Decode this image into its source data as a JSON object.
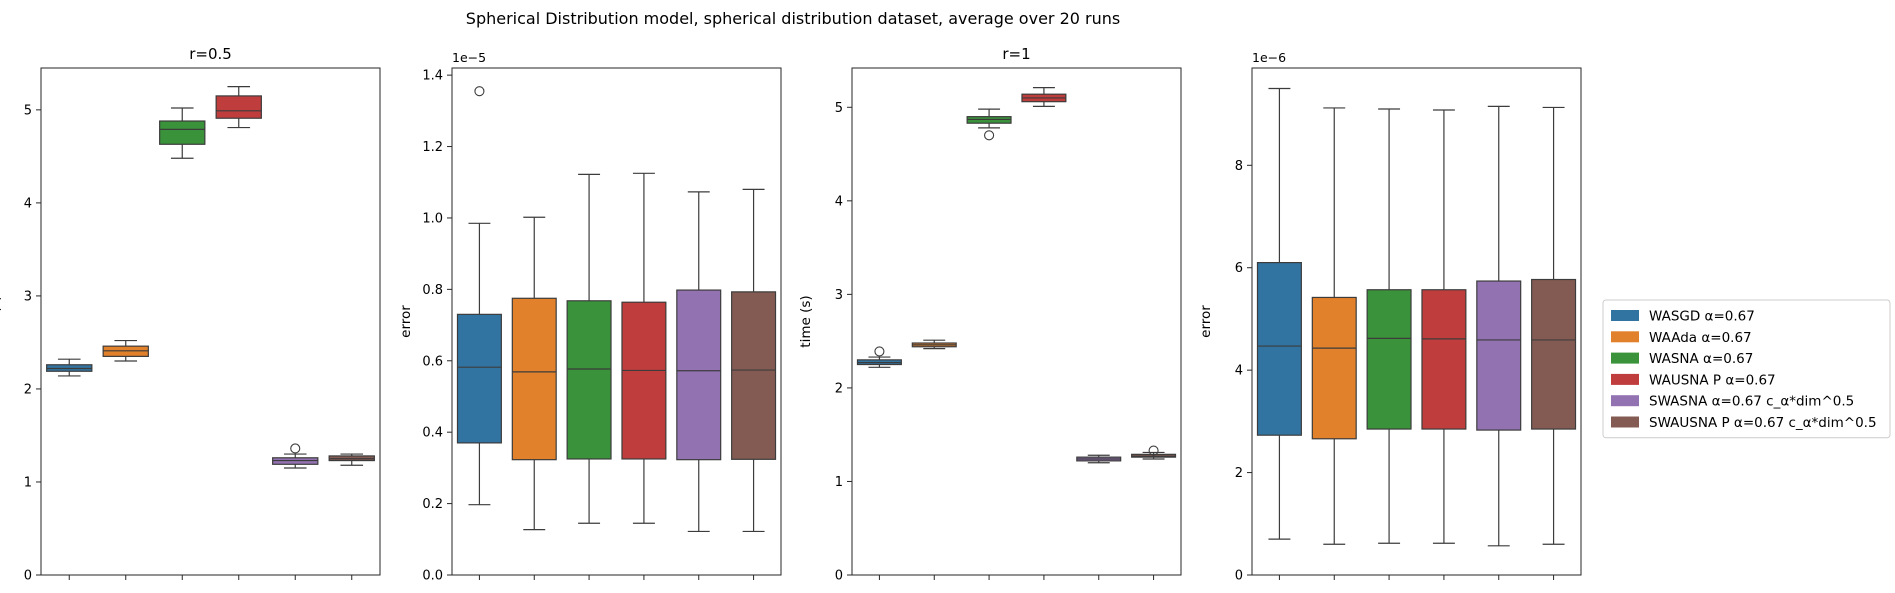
{
  "figure": {
    "suptitle": "Spherical Distribution model, spherical distribution dataset, average over 20 runs"
  },
  "legend": {
    "placement": "right, outside plots",
    "entries": [
      {
        "label": "WASGD α=0.67",
        "color": "#3274a1"
      },
      {
        "label": "WAAda α=0.67",
        "color": "#e1812c"
      },
      {
        "label": "WASNA α=0.67",
        "color": "#3a923a"
      },
      {
        "label": "WAUSNA P α=0.67",
        "color": "#c03d3e"
      },
      {
        "label": "SWASNA α=0.67 c_α*dim^0.5",
        "color": "#9372b2"
      },
      {
        "label": "SWAUSNA P α=0.67 c_α*dim^0.5",
        "color": "#845b53"
      }
    ]
  },
  "chart_data": [
    {
      "type": "box",
      "title": "r=0.5",
      "xlabel": "",
      "ylabel": "time (s)",
      "offset_label": "",
      "ylim": [
        0,
        5.45
      ],
      "yticks": [
        0,
        1,
        2,
        3,
        4,
        5
      ],
      "ytick_labels": [
        "0",
        "1",
        "2",
        "3",
        "4",
        "5"
      ],
      "grid": false,
      "series": [
        {
          "name": "WASGD α=0.67",
          "whislo": 2.14,
          "q1": 2.19,
          "median": 2.22,
          "q3": 2.26,
          "whishi": 2.32,
          "fliers": []
        },
        {
          "name": "WAAda α=0.67",
          "whislo": 2.3,
          "q1": 2.35,
          "median": 2.41,
          "q3": 2.46,
          "whishi": 2.52,
          "fliers": []
        },
        {
          "name": "WASNA α=0.67",
          "whislo": 4.48,
          "q1": 4.63,
          "median": 4.79,
          "q3": 4.88,
          "whishi": 5.02,
          "fliers": []
        },
        {
          "name": "WAUSNA P α=0.67",
          "whislo": 4.81,
          "q1": 4.91,
          "median": 4.99,
          "q3": 5.15,
          "whishi": 5.25,
          "fliers": []
        },
        {
          "name": "SWASNA α=0.67 c_α*dim^0.5",
          "whislo": 1.15,
          "q1": 1.19,
          "median": 1.23,
          "q3": 1.26,
          "whishi": 1.3,
          "fliers": [
            1.36
          ]
        },
        {
          "name": "SWAUSNA P α=0.67 c_α*dim^0.5",
          "whislo": 1.18,
          "q1": 1.23,
          "median": 1.25,
          "q3": 1.28,
          "whishi": 1.3,
          "fliers": []
        }
      ]
    },
    {
      "type": "box",
      "title": "",
      "xlabel": "",
      "ylabel": "error",
      "offset_label": "1e−5",
      "ylim": [
        0,
        1.42
      ],
      "yticks": [
        0,
        0.2,
        0.4,
        0.6,
        0.8,
        1.0,
        1.2,
        1.4
      ],
      "ytick_labels": [
        "0.0",
        "0.2",
        "0.4",
        "0.6",
        "0.8",
        "1.0",
        "1.2",
        "1.4"
      ],
      "grid": false,
      "series": [
        {
          "name": "WASGD α=0.67",
          "whislo": 0.197,
          "q1": 0.37,
          "median": 0.582,
          "q3": 0.73,
          "whishi": 0.985,
          "fliers": [
            1.355
          ]
        },
        {
          "name": "WAAda α=0.67",
          "whislo": 0.127,
          "q1": 0.323,
          "median": 0.569,
          "q3": 0.775,
          "whishi": 1.002,
          "fliers": []
        },
        {
          "name": "WASNA α=0.67",
          "whislo": 0.145,
          "q1": 0.325,
          "median": 0.577,
          "q3": 0.768,
          "whishi": 1.122,
          "fliers": []
        },
        {
          "name": "WAUSNA P α=0.67",
          "whislo": 0.145,
          "q1": 0.325,
          "median": 0.573,
          "q3": 0.764,
          "whishi": 1.125,
          "fliers": []
        },
        {
          "name": "SWASNA α=0.67 c_α*dim^0.5",
          "whislo": 0.122,
          "q1": 0.323,
          "median": 0.572,
          "q3": 0.798,
          "whishi": 1.073,
          "fliers": []
        },
        {
          "name": "SWAUSNA P α=0.67 c_α*dim^0.5",
          "whislo": 0.122,
          "q1": 0.324,
          "median": 0.574,
          "q3": 0.793,
          "whishi": 1.08,
          "fliers": []
        }
      ]
    },
    {
      "type": "box",
      "title": "r=1",
      "xlabel": "",
      "ylabel": "time (s)",
      "offset_label": "",
      "ylim": [
        0,
        5.42
      ],
      "yticks": [
        0,
        1,
        2,
        3,
        4,
        5
      ],
      "ytick_labels": [
        "0",
        "1",
        "2",
        "3",
        "4",
        "5"
      ],
      "grid": false,
      "series": [
        {
          "name": "WASGD α=0.67",
          "whislo": 2.22,
          "q1": 2.25,
          "median": 2.27,
          "q3": 2.3,
          "whishi": 2.33,
          "fliers": [
            2.39
          ]
        },
        {
          "name": "WAAda α=0.67",
          "whislo": 2.42,
          "q1": 2.44,
          "median": 2.46,
          "q3": 2.48,
          "whishi": 2.51,
          "fliers": []
        },
        {
          "name": "WASNA α=0.67",
          "whislo": 4.78,
          "q1": 4.83,
          "median": 4.87,
          "q3": 4.9,
          "whishi": 4.98,
          "fliers": [
            4.7
          ]
        },
        {
          "name": "WAUSNA P α=0.67",
          "whislo": 5.01,
          "q1": 5.06,
          "median": 5.1,
          "q3": 5.14,
          "whishi": 5.21,
          "fliers": []
        },
        {
          "name": "SWASNA α=0.67 c_α*dim^0.5",
          "whislo": 1.2,
          "q1": 1.22,
          "median": 1.24,
          "q3": 1.26,
          "whishi": 1.28,
          "fliers": []
        },
        {
          "name": "SWAUSNA P α=0.67 c_α*dim^0.5",
          "whislo": 1.24,
          "q1": 1.26,
          "median": 1.27,
          "q3": 1.29,
          "whishi": 1.31,
          "fliers": [
            1.33
          ]
        }
      ]
    },
    {
      "type": "box",
      "title": "",
      "xlabel": "",
      "ylabel": "error",
      "offset_label": "1e−6",
      "ylim": [
        0,
        9.9
      ],
      "yticks": [
        0,
        2,
        4,
        6,
        8
      ],
      "ytick_labels": [
        "0",
        "2",
        "4",
        "6",
        "8"
      ],
      "grid": false,
      "series": [
        {
          "name": "WASGD α=0.67",
          "whislo": 0.7,
          "q1": 2.73,
          "median": 4.47,
          "q3": 6.1,
          "whishi": 9.5,
          "fliers": []
        },
        {
          "name": "WAAda α=0.67",
          "whislo": 0.6,
          "q1": 2.66,
          "median": 4.43,
          "q3": 5.42,
          "whishi": 9.12,
          "fliers": []
        },
        {
          "name": "WASNA α=0.67",
          "whislo": 0.62,
          "q1": 2.85,
          "median": 4.62,
          "q3": 5.57,
          "whishi": 9.1,
          "fliers": []
        },
        {
          "name": "WAUSNA P α=0.67",
          "whislo": 0.62,
          "q1": 2.85,
          "median": 4.61,
          "q3": 5.57,
          "whishi": 9.08,
          "fliers": []
        },
        {
          "name": "SWASNA α=0.67 c_α*dim^0.5",
          "whislo": 0.57,
          "q1": 2.83,
          "median": 4.59,
          "q3": 5.74,
          "whishi": 9.15,
          "fliers": []
        },
        {
          "name": "SWAUSNA P α=0.67 c_α*dim^0.5",
          "whislo": 0.6,
          "q1": 2.85,
          "median": 4.59,
          "q3": 5.77,
          "whishi": 9.13,
          "fliers": []
        }
      ]
    }
  ]
}
